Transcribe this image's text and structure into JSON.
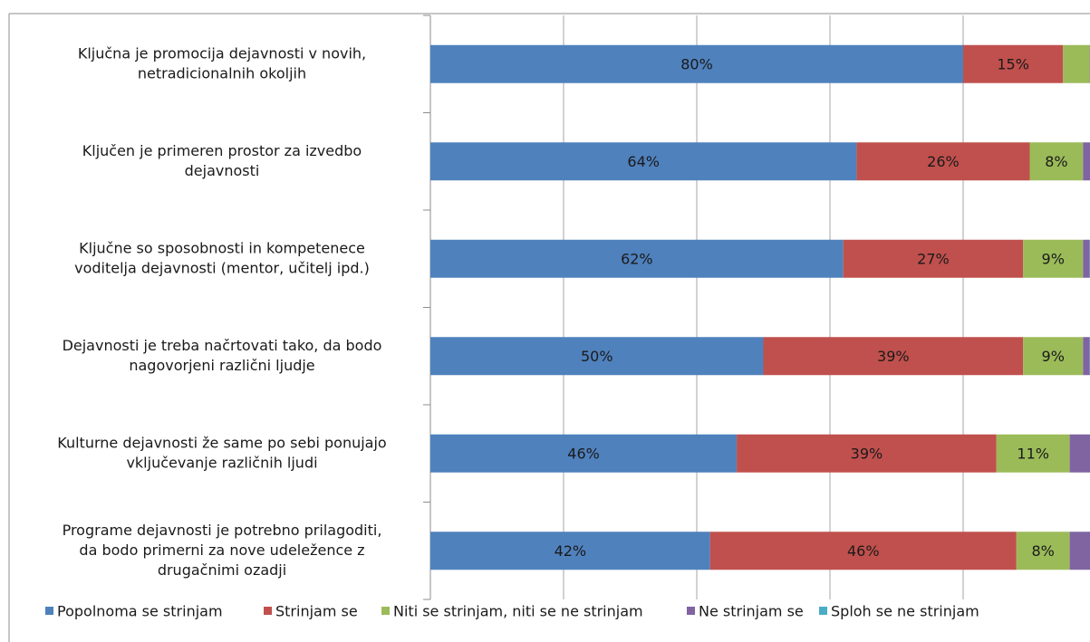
{
  "chart_data": {
    "type": "stacked-barh",
    "categories": [
      [
        "Ključna je promocija dejavnosti v novih,",
        "netradicionalnih okoljih"
      ],
      [
        "Ključen je primeren prostor za izvedbo",
        "dejavnosti"
      ],
      [
        "Ključne so sposobnosti in kompetenece",
        "voditelja dejavnosti (mentor, učitelj ipd.)"
      ],
      [
        "Dejavnosti je treba načrtovati tako, da bodo",
        "nagovorjeni različni ljudje"
      ],
      [
        "Kulturne dejavnosti že same po sebi ponujajo",
        "vključevanje različnih ljudi"
      ],
      [
        "Programe dejavnosti je potrebno prilagoditi,",
        "da bodo primerni za nove udeležence z",
        "drugačnimi ozadji"
      ]
    ],
    "series": [
      {
        "name": "Popolnoma se strinjam",
        "color": "#4f81bd",
        "values": [
          80,
          64,
          62,
          50,
          46,
          42
        ],
        "value_labels": [
          "80%",
          "64%",
          "62%",
          "50%",
          "46%",
          "42%"
        ]
      },
      {
        "name": "Strinjam se",
        "color": "#c0504d",
        "values": [
          15,
          26,
          27,
          39,
          39,
          46
        ],
        "value_labels": [
          "15%",
          "26%",
          "27%",
          "39%",
          "39%",
          "46%"
        ]
      },
      {
        "name": "Niti se strinjam, niti se ne strinjam",
        "color": "#9bbb59",
        "values": [
          4,
          8,
          9,
          9,
          11,
          8
        ],
        "value_labels": [
          null,
          "8%",
          "9%",
          "9%",
          "11%",
          "8%"
        ]
      },
      {
        "name": "Ne strinjam se",
        "color": "#8064a2",
        "values": [
          1,
          2,
          1,
          1,
          4,
          4
        ]
      },
      {
        "name": "Sploh se ne strinjam",
        "color": "#4bacc6",
        "values": [
          0,
          0,
          1,
          1,
          0,
          0
        ]
      }
    ],
    "xlim": [
      0,
      100
    ],
    "xticks": [
      0,
      20,
      40,
      60,
      80,
      100
    ],
    "grid": true,
    "legend": "bottom"
  }
}
